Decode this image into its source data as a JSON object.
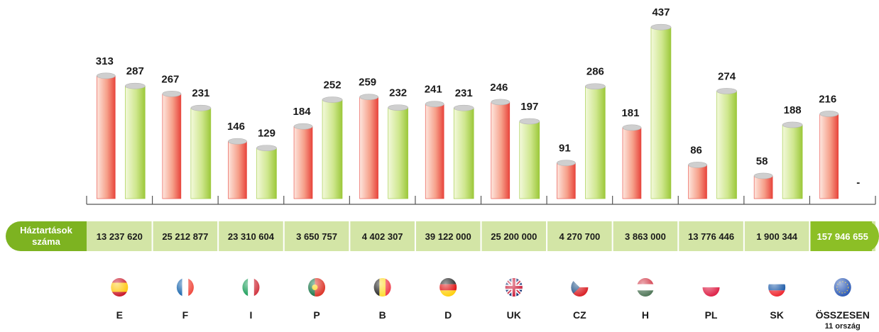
{
  "chart_data": {
    "type": "bar",
    "categories": [
      "E",
      "F",
      "I",
      "P",
      "B",
      "D",
      "UK",
      "CZ",
      "H",
      "PL",
      "SK",
      "ÖSSZESEN"
    ],
    "total_note": "11 ország",
    "series": [
      {
        "color": "#e8453c",
        "values": [
          313,
          267,
          146,
          184,
          259,
          241,
          246,
          91,
          181,
          86,
          58,
          216
        ]
      },
      {
        "color": "#9cc83a",
        "values": [
          287,
          231,
          129,
          252,
          232,
          231,
          197,
          286,
          437,
          274,
          188,
          null
        ],
        "value_labels": [
          "287",
          "231",
          "129",
          "252",
          "232",
          "231",
          "197",
          "286",
          "437",
          "274",
          "188",
          "-"
        ]
      }
    ],
    "ylim": [
      0,
      450
    ],
    "table": {
      "header": [
        "Háztartások",
        "száma"
      ],
      "cells": [
        "13 237 620",
        "25 212 877",
        "23 310 604",
        "3 650 757",
        "4 402 307",
        "39 122 000",
        "25 200 000",
        "4 270 700",
        "3 863 000",
        "13 776 446",
        "1 900 344",
        "157 946 655"
      ]
    }
  }
}
